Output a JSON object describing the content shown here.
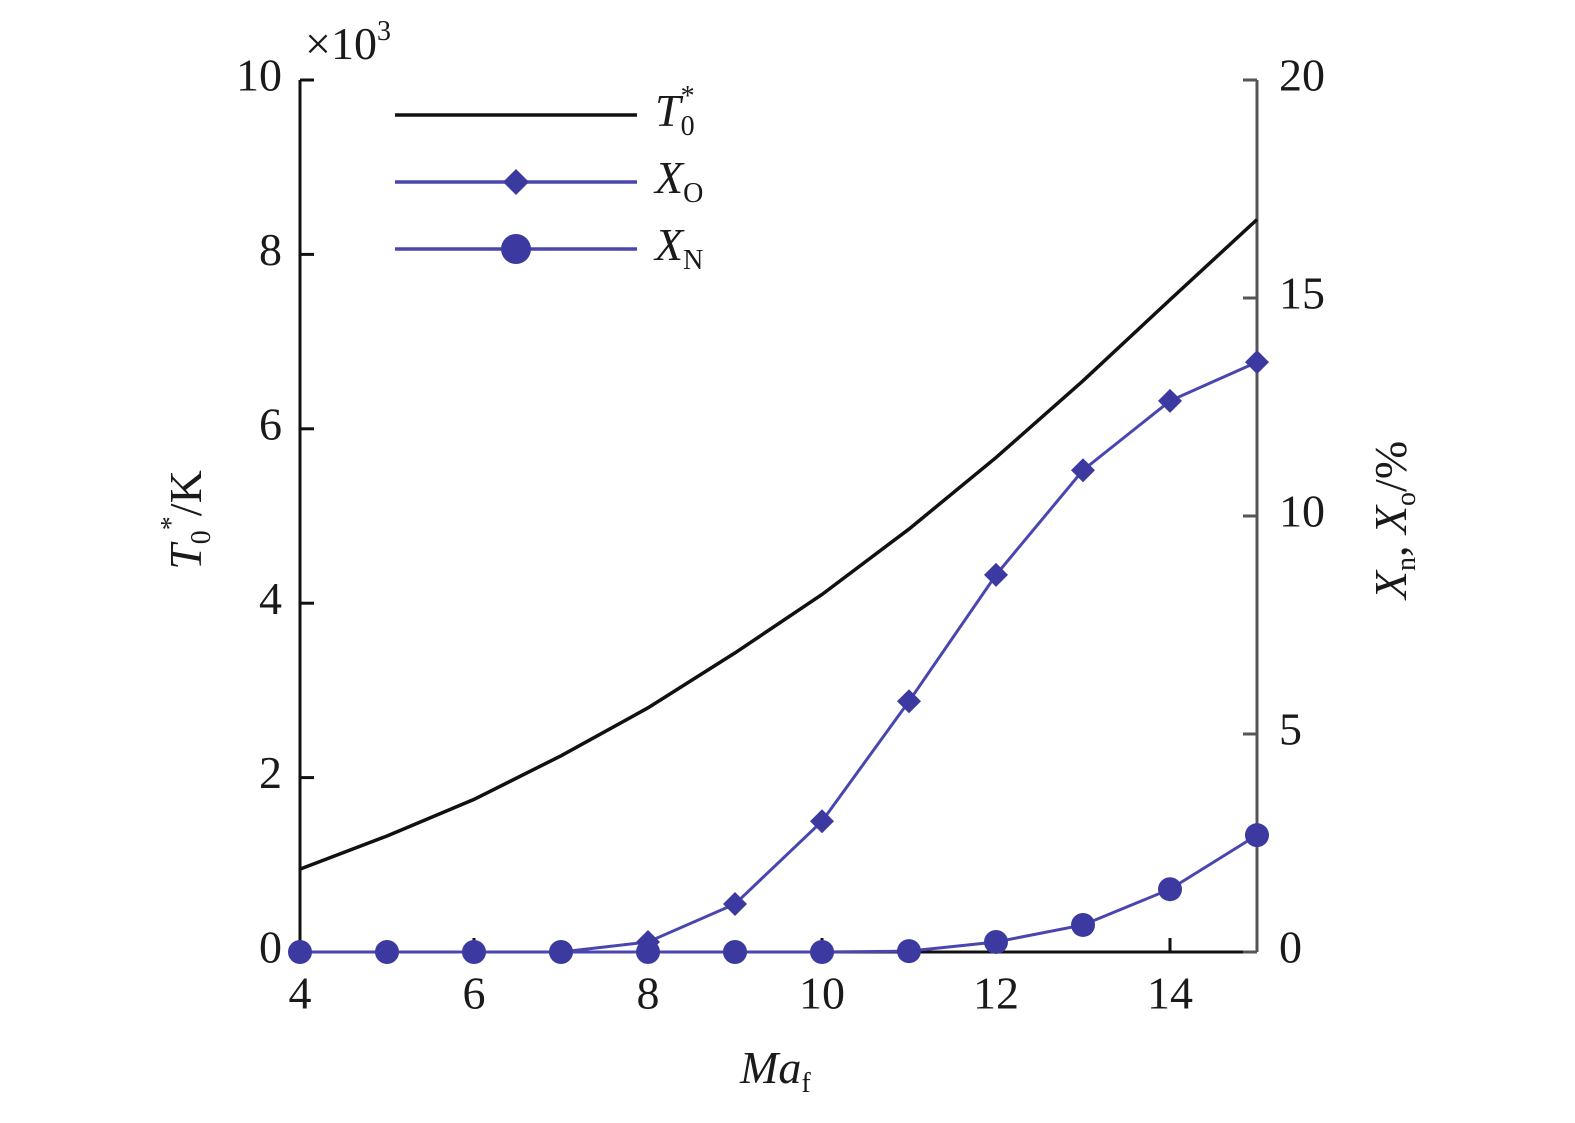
{
  "chart_data": {
    "type": "line",
    "multiplier": {
      "base": "×10",
      "exponent": "3"
    },
    "x_label": {
      "main": "Ma",
      "sub": "f"
    },
    "y_label": {
      "main": "T",
      "sub": "0",
      "sup": "*",
      "unit": "/K"
    },
    "y2_label": {
      "main1": "X",
      "sub1": "n",
      "sep": ", ",
      "main2": "X",
      "sub2": "o",
      "unit": "/%"
    },
    "x": [
      4,
      5,
      6,
      7,
      8,
      9,
      10,
      11,
      12,
      13,
      14,
      15
    ],
    "xlim": [
      4,
      15
    ],
    "xticks": [
      4,
      6,
      8,
      10,
      12,
      14
    ],
    "ylim": [
      0,
      10
    ],
    "yticks": [
      0,
      2,
      4,
      6,
      8,
      10
    ],
    "y2lim": [
      0,
      20
    ],
    "y2ticks": [
      0,
      5,
      10,
      15,
      20
    ],
    "legend": "upper left",
    "series": [
      {
        "name": "T",
        "name_sub": "0",
        "name_sup": "*",
        "color": "#111111",
        "marker": null,
        "axis": "y",
        "values": [
          0.95,
          1.33,
          1.75,
          2.25,
          2.8,
          3.43,
          4.1,
          4.85,
          5.67,
          6.55,
          7.48,
          8.4
        ]
      },
      {
        "name": "X",
        "name_sub": "O",
        "color": "#4a46b0",
        "marker": "diamond",
        "axis": "y2",
        "values": [
          0,
          0,
          0,
          0,
          0.23,
          1.1,
          3.0,
          5.75,
          8.65,
          11.05,
          12.64,
          13.53
        ]
      },
      {
        "name": "X",
        "name_sub": "N",
        "color": "#4a46b0",
        "marker": "circle",
        "axis": "y2",
        "values": [
          0,
          0,
          0,
          0,
          0,
          0,
          0,
          0.02,
          0.23,
          0.62,
          1.44,
          2.68
        ]
      }
    ]
  }
}
